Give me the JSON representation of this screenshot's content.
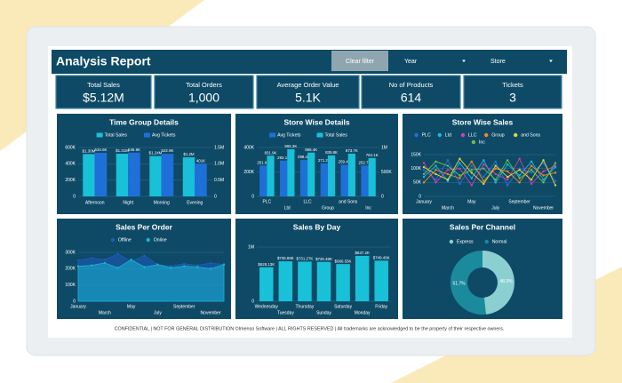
{
  "header": {
    "title": "Analysis Report",
    "clear_filter": "Clear filter",
    "filters": [
      "Year",
      "Store"
    ]
  },
  "kpis": [
    {
      "label": "Total Sales",
      "value": "$5.12M"
    },
    {
      "label": "Total Orders",
      "value": "1,000"
    },
    {
      "label": "Average Order Value",
      "value": "5.1K"
    },
    {
      "label": "No of Products",
      "value": "614"
    },
    {
      "label": "Tickets",
      "value": "3"
    }
  ],
  "chart_data": [
    {
      "type": "bar",
      "title": "Time Group Details",
      "categories": [
        "Afternoon",
        "Night",
        "Morning",
        "Evening"
      ],
      "series": [
        {
          "name": "Total Sales",
          "color": "#18c0d8",
          "axis": "y2",
          "values": [
            1300000,
            1310000,
            1240000,
            1200000
          ],
          "value_labels": [
            "$1.30M",
            "$1.31M",
            "$1.24M",
            "$1.2M"
          ]
        },
        {
          "name": "Avg Tickets",
          "color": "#1f6fd8",
          "values": [
            534600,
            536900,
            522900,
            401000
          ],
          "value_labels": [
            "534.6K",
            "536.9K",
            "522.9K",
            "401K"
          ]
        }
      ],
      "ylim": [
        0,
        600000
      ],
      "yticks": [
        0,
        {
          "value": 200000,
          "label": "200K"
        },
        {
          "value": 400000,
          "label": "400K"
        },
        {
          "value": 600000,
          "label": "600K"
        }
      ],
      "y2lim": [
        0,
        1500000
      ],
      "y2ticks": [
        0,
        {
          "value": 500000,
          "label": "0.5M"
        },
        {
          "value": 1000000,
          "label": "1.0M"
        },
        {
          "value": 1500000,
          "label": "1.5M"
        }
      ],
      "grid": true
    },
    {
      "type": "bar",
      "title": "Store Wise Details",
      "categories": [
        "PLC",
        "Ltd",
        "LLC",
        "Group",
        "and Sons",
        "Inc"
      ],
      "series": [
        {
          "name": "Avg Tickets",
          "color": "#1f6fd8",
          "values": [
            251600,
            293100,
            298400,
            271200,
            259400,
            252700
          ],
          "value_labels": [
            "251.6K",
            "293.1K",
            "298.4K",
            "271.2K",
            "259.4K",
            "252.7K"
          ]
        },
        {
          "name": "Total Sales",
          "color": "#18c0d8",
          "axis": "y2",
          "values": [
            831900,
            965300,
            895400,
            839800,
            873700,
            784100
          ],
          "value_labels": [
            "831.9K",
            "965.3K",
            "895.4K",
            "839.8K",
            "873.7K",
            "784.1K"
          ]
        }
      ],
      "ylim": [
        0,
        400000
      ],
      "yticks": [
        0,
        {
          "value": 200000,
          "label": "200K"
        },
        {
          "value": 400000,
          "label": "400K"
        }
      ],
      "y2lim": [
        0,
        1000000
      ],
      "y2ticks": [
        0,
        {
          "value": 500000,
          "label": "500K"
        },
        {
          "value": 1000000,
          "label": "1M"
        }
      ],
      "grid": true
    },
    {
      "type": "line",
      "title": "Store Wise Sales",
      "categories": [
        "January",
        null,
        "March",
        null,
        "May",
        null,
        "July",
        null,
        "September",
        null,
        "November",
        null
      ],
      "series": [
        {
          "name": "PLC",
          "color": "#2a6fd6",
          "values": [
            95000,
            60000,
            130000,
            45000,
            110000,
            70000,
            125000,
            40000,
            100000,
            85000,
            120000,
            55000
          ]
        },
        {
          "name": "Ltd",
          "color": "#1ab7ea",
          "values": [
            70000,
            110000,
            55000,
            120000,
            65000,
            130000,
            50000,
            115000,
            75000,
            125000,
            60000,
            105000
          ]
        },
        {
          "name": "LLC",
          "color": "#d63fa8",
          "values": [
            120000,
            50000,
            95000,
            100000,
            40000,
            115000,
            80000,
            60000,
            135000,
            45000,
            90000,
            110000
          ]
        },
        {
          "name": "Group",
          "color": "#f08a24",
          "values": [
            50000,
            95000,
            80000,
            65000,
            125000,
            55000,
            100000,
            90000,
            50000,
            110000,
            75000,
            85000
          ]
        },
        {
          "name": "and Sons",
          "color": "#e6d33a",
          "values": [
            105000,
            80000,
            60000,
            135000,
            85000,
            45000,
            110000,
            70000,
            95000,
            60000,
            130000,
            40000
          ]
        },
        {
          "name": "Inc",
          "color": "#6cc04a",
          "values": [
            80000,
            125000,
            110000,
            75000,
            95000,
            100000,
            60000,
            130000,
            65000,
            95000,
            50000,
            120000
          ]
        }
      ],
      "ylim": [
        0,
        150000
      ],
      "yticks": [
        0,
        {
          "value": 50000,
          "label": "50K"
        },
        {
          "value": 100000,
          "label": "100K"
        },
        {
          "value": 150000,
          "label": "150K"
        }
      ],
      "grid": true
    },
    {
      "type": "area",
      "title": "Sales Per Order",
      "categories": [
        "January",
        null,
        "March",
        null,
        "May",
        null,
        "July",
        null,
        "September",
        null,
        "November",
        null
      ],
      "series": [
        {
          "name": "Offline",
          "color": "#1f5bbf",
          "values": [
            250000,
            265000,
            255000,
            290000,
            245000,
            280000,
            225000,
            215000,
            230000,
            220000,
            235000,
            225000
          ]
        },
        {
          "name": "Online",
          "color": "#18b4d0",
          "values": [
            215000,
            220000,
            235000,
            205000,
            255000,
            210000,
            225000,
            205000,
            215000,
            210000,
            200000,
            225000
          ]
        }
      ],
      "ylim": [
        0,
        300000
      ],
      "yticks": [
        0,
        {
          "value": 100000,
          "label": "100K"
        },
        {
          "value": 200000,
          "label": "200K"
        },
        {
          "value": 300000,
          "label": "300K"
        }
      ],
      "grid": true
    },
    {
      "type": "bar",
      "title": "Sales By Day",
      "categories": [
        "Wednesday",
        "Tuesday",
        "Thursday",
        "Sunday",
        "Saturday",
        "Monday",
        "Friday"
      ],
      "values": [
        628130,
        736880,
        731270,
        726480,
        686550,
        837200,
        749490
      ],
      "value_labels": [
        "$628.13K",
        "$736.88K",
        "$731.27K",
        "$726.48K",
        "$686.55K",
        "$837.2K",
        "$749.49K"
      ],
      "color": "#18c0d8",
      "ylim": [
        0,
        1000000
      ],
      "yticks": [
        0,
        {
          "value": 1000000,
          "label": "1M"
        }
      ],
      "grid": true
    },
    {
      "type": "pie",
      "title": "Sales Per Channel",
      "categories": [
        "Express",
        "Normal"
      ],
      "values": [
        48.3,
        51.7
      ],
      "value_labels": [
        "48.3%",
        "51.7%"
      ],
      "colors": [
        "#8ccfd1",
        "#1b8a9c"
      ]
    }
  ],
  "footer": "CONFIDENTIAL | NOT FOR GENERAL DISTRIBUTION ©Imenso Software | ALL RIGHTS RESERVED | All trademarks are acknowledged to be the property of their respective owners."
}
